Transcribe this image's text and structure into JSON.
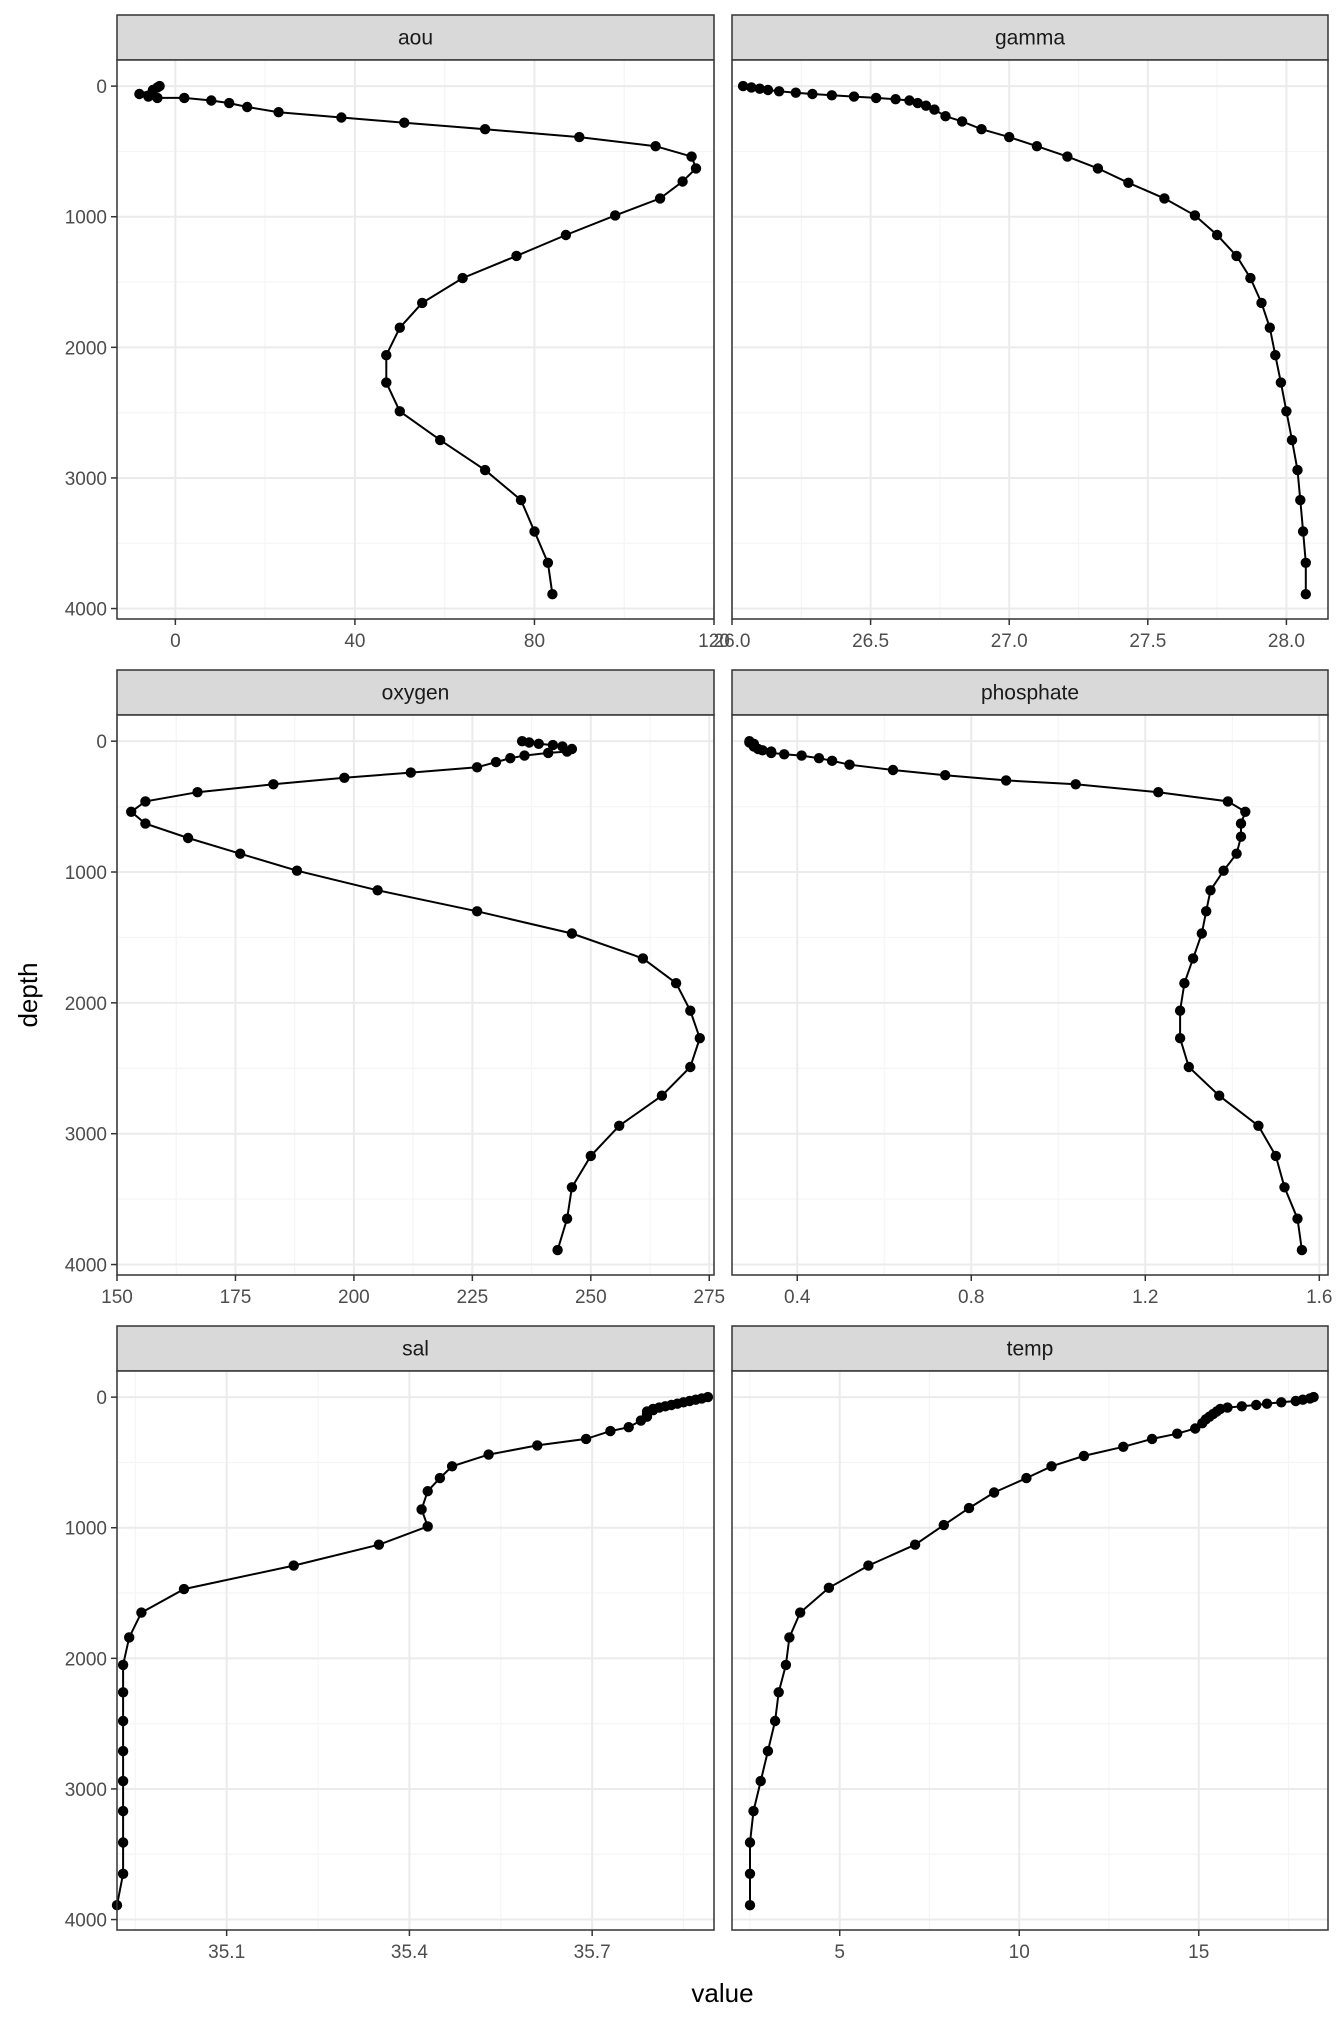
{
  "chart_data": {
    "type": "line",
    "xlabel": "value",
    "ylabel": "depth",
    "y_axis": {
      "reversed": true,
      "lim": [
        -200,
        4080
      ],
      "ticks": [
        0,
        1000,
        2000,
        3000,
        4000
      ]
    },
    "grid": true,
    "theme": "bw",
    "colors": {
      "line": "#000000",
      "point": "#000000",
      "strip_fill": "#d9d9d9",
      "grid_major": "#ebebeb",
      "grid_minor": "#f5f5f5",
      "panel_border": "#333333"
    },
    "facets": [
      {
        "name": "aou",
        "xlim": [
          -13,
          120
        ],
        "xticks": [
          0,
          40,
          80,
          120
        ],
        "points": [
          [
            -3.5,
            0
          ],
          [
            -4,
            10
          ],
          [
            -5,
            30
          ],
          [
            -8,
            60
          ],
          [
            -6,
            80
          ],
          [
            -4,
            90
          ],
          [
            2,
            90
          ],
          [
            8,
            110
          ],
          [
            12,
            130
          ],
          [
            16,
            160
          ],
          [
            23,
            200
          ],
          [
            37,
            240
          ],
          [
            51,
            280
          ],
          [
            69,
            330
          ],
          [
            90,
            390
          ],
          [
            107,
            460
          ],
          [
            115,
            540
          ],
          [
            116,
            630
          ],
          [
            113,
            730
          ],
          [
            108,
            860
          ],
          [
            98,
            990
          ],
          [
            87,
            1140
          ],
          [
            76,
            1300
          ],
          [
            64,
            1470
          ],
          [
            55,
            1660
          ],
          [
            50,
            1850
          ],
          [
            47,
            2060
          ],
          [
            47,
            2270
          ],
          [
            50,
            2490
          ],
          [
            59,
            2710
          ],
          [
            69,
            2940
          ],
          [
            77,
            3170
          ],
          [
            80,
            3410
          ],
          [
            83,
            3650
          ],
          [
            84,
            3890
          ]
        ]
      },
      {
        "name": "gamma",
        "xlim": [
          26.0,
          28.15
        ],
        "xticks": [
          26.0,
          26.5,
          27.0,
          27.5,
          28.0
        ],
        "xticklabels": [
          "26.0",
          "26.5",
          "27.0",
          "27.5",
          "28.0"
        ],
        "points": [
          [
            26.04,
            0
          ],
          [
            26.07,
            10
          ],
          [
            26.1,
            20
          ],
          [
            26.13,
            30
          ],
          [
            26.17,
            40
          ],
          [
            26.23,
            50
          ],
          [
            26.29,
            60
          ],
          [
            26.36,
            70
          ],
          [
            26.44,
            80
          ],
          [
            26.52,
            90
          ],
          [
            26.59,
            100
          ],
          [
            26.64,
            110
          ],
          [
            26.67,
            130
          ],
          [
            26.7,
            150
          ],
          [
            26.73,
            180
          ],
          [
            26.77,
            230
          ],
          [
            26.83,
            270
          ],
          [
            26.9,
            330
          ],
          [
            27.0,
            390
          ],
          [
            27.1,
            460
          ],
          [
            27.21,
            540
          ],
          [
            27.32,
            630
          ],
          [
            27.43,
            740
          ],
          [
            27.56,
            860
          ],
          [
            27.67,
            990
          ],
          [
            27.75,
            1140
          ],
          [
            27.82,
            1300
          ],
          [
            27.87,
            1470
          ],
          [
            27.91,
            1660
          ],
          [
            27.94,
            1850
          ],
          [
            27.96,
            2060
          ],
          [
            27.98,
            2270
          ],
          [
            28.0,
            2490
          ],
          [
            28.02,
            2710
          ],
          [
            28.04,
            2940
          ],
          [
            28.05,
            3170
          ],
          [
            28.06,
            3410
          ],
          [
            28.07,
            3650
          ],
          [
            28.07,
            3890
          ]
        ]
      },
      {
        "name": "oxygen",
        "xlim": [
          150,
          276
        ],
        "xticks": [
          150,
          175,
          200,
          225,
          250,
          275
        ],
        "points": [
          [
            235.5,
            0
          ],
          [
            237,
            10
          ],
          [
            239,
            20
          ],
          [
            242,
            30
          ],
          [
            244,
            40
          ],
          [
            246,
            60
          ],
          [
            245,
            80
          ],
          [
            241,
            90
          ],
          [
            236,
            110
          ],
          [
            233,
            130
          ],
          [
            230,
            160
          ],
          [
            226,
            200
          ],
          [
            212,
            240
          ],
          [
            198,
            280
          ],
          [
            183,
            330
          ],
          [
            167,
            390
          ],
          [
            156,
            460
          ],
          [
            153,
            540
          ],
          [
            156,
            630
          ],
          [
            165,
            740
          ],
          [
            176,
            860
          ],
          [
            188,
            990
          ],
          [
            205,
            1140
          ],
          [
            226,
            1300
          ],
          [
            246,
            1470
          ],
          [
            261,
            1660
          ],
          [
            268,
            1850
          ],
          [
            271,
            2060
          ],
          [
            273,
            2270
          ],
          [
            271,
            2490
          ],
          [
            265,
            2710
          ],
          [
            256,
            2940
          ],
          [
            250,
            3170
          ],
          [
            246,
            3410
          ],
          [
            245,
            3650
          ],
          [
            243,
            3890
          ]
        ]
      },
      {
        "name": "phosphate",
        "xlim": [
          0.25,
          1.62
        ],
        "xticks": [
          0.4,
          0.8,
          1.2,
          1.6
        ],
        "points": [
          [
            0.29,
            0
          ],
          [
            0.29,
            10
          ],
          [
            0.3,
            20
          ],
          [
            0.3,
            30
          ],
          [
            0.3,
            40
          ],
          [
            0.31,
            60
          ],
          [
            0.32,
            70
          ],
          [
            0.34,
            80
          ],
          [
            0.34,
            90
          ],
          [
            0.37,
            100
          ],
          [
            0.41,
            110
          ],
          [
            0.45,
            130
          ],
          [
            0.48,
            150
          ],
          [
            0.52,
            180
          ],
          [
            0.62,
            220
          ],
          [
            0.74,
            260
          ],
          [
            0.88,
            300
          ],
          [
            1.04,
            330
          ],
          [
            1.23,
            390
          ],
          [
            1.39,
            460
          ],
          [
            1.43,
            540
          ],
          [
            1.42,
            630
          ],
          [
            1.42,
            730
          ],
          [
            1.41,
            860
          ],
          [
            1.38,
            990
          ],
          [
            1.35,
            1140
          ],
          [
            1.34,
            1300
          ],
          [
            1.33,
            1470
          ],
          [
            1.31,
            1660
          ],
          [
            1.29,
            1850
          ],
          [
            1.28,
            2060
          ],
          [
            1.28,
            2270
          ],
          [
            1.3,
            2490
          ],
          [
            1.37,
            2710
          ],
          [
            1.46,
            2940
          ],
          [
            1.5,
            3170
          ],
          [
            1.52,
            3410
          ],
          [
            1.55,
            3650
          ],
          [
            1.56,
            3890
          ]
        ]
      },
      {
        "name": "sal",
        "xlim": [
          34.92,
          35.9
        ],
        "xticks": [
          35.1,
          35.4,
          35.7
        ],
        "xticklabels": [
          "35.1",
          "35.4",
          "35.7"
        ],
        "points": [
          [
            35.89,
            0
          ],
          [
            35.88,
            10
          ],
          [
            35.87,
            20
          ],
          [
            35.86,
            30
          ],
          [
            35.85,
            40
          ],
          [
            35.84,
            50
          ],
          [
            35.83,
            60
          ],
          [
            35.82,
            70
          ],
          [
            35.81,
            80
          ],
          [
            35.8,
            90
          ],
          [
            35.8,
            100
          ],
          [
            35.79,
            110
          ],
          [
            35.79,
            130
          ],
          [
            35.79,
            150
          ],
          [
            35.78,
            180
          ],
          [
            35.76,
            230
          ],
          [
            35.73,
            260
          ],
          [
            35.69,
            320
          ],
          [
            35.61,
            370
          ],
          [
            35.53,
            440
          ],
          [
            35.47,
            530
          ],
          [
            35.45,
            620
          ],
          [
            35.43,
            720
          ],
          [
            35.42,
            860
          ],
          [
            35.43,
            990
          ],
          [
            35.35,
            1130
          ],
          [
            35.21,
            1290
          ],
          [
            35.03,
            1470
          ],
          [
            34.96,
            1650
          ],
          [
            34.94,
            1840
          ],
          [
            34.93,
            2050
          ],
          [
            34.93,
            2260
          ],
          [
            34.93,
            2480
          ],
          [
            34.93,
            2710
          ],
          [
            34.93,
            2940
          ],
          [
            34.93,
            3170
          ],
          [
            34.93,
            3410
          ],
          [
            34.93,
            3650
          ],
          [
            34.92,
            3890
          ]
        ]
      },
      {
        "name": "temp",
        "xlim": [
          2.0,
          18.6
        ],
        "xticks": [
          5,
          10,
          15
        ],
        "points": [
          [
            18.2,
            0
          ],
          [
            18.1,
            10
          ],
          [
            17.9,
            20
          ],
          [
            17.7,
            30
          ],
          [
            17.3,
            40
          ],
          [
            16.9,
            50
          ],
          [
            16.6,
            60
          ],
          [
            16.2,
            70
          ],
          [
            15.8,
            80
          ],
          [
            15.6,
            90
          ],
          [
            15.5,
            110
          ],
          [
            15.4,
            130
          ],
          [
            15.3,
            150
          ],
          [
            15.2,
            170
          ],
          [
            15.1,
            200
          ],
          [
            14.9,
            240
          ],
          [
            14.4,
            280
          ],
          [
            13.7,
            320
          ],
          [
            12.9,
            380
          ],
          [
            11.8,
            450
          ],
          [
            10.9,
            530
          ],
          [
            10.2,
            620
          ],
          [
            9.3,
            730
          ],
          [
            8.6,
            850
          ],
          [
            7.9,
            980
          ],
          [
            7.1,
            1130
          ],
          [
            5.8,
            1290
          ],
          [
            4.7,
            1460
          ],
          [
            3.9,
            1650
          ],
          [
            3.6,
            1840
          ],
          [
            3.5,
            2050
          ],
          [
            3.3,
            2260
          ],
          [
            3.2,
            2480
          ],
          [
            3.0,
            2710
          ],
          [
            2.8,
            2940
          ],
          [
            2.6,
            3170
          ],
          [
            2.5,
            3410
          ],
          [
            2.5,
            3650
          ],
          [
            2.5,
            3890
          ]
        ]
      }
    ]
  }
}
